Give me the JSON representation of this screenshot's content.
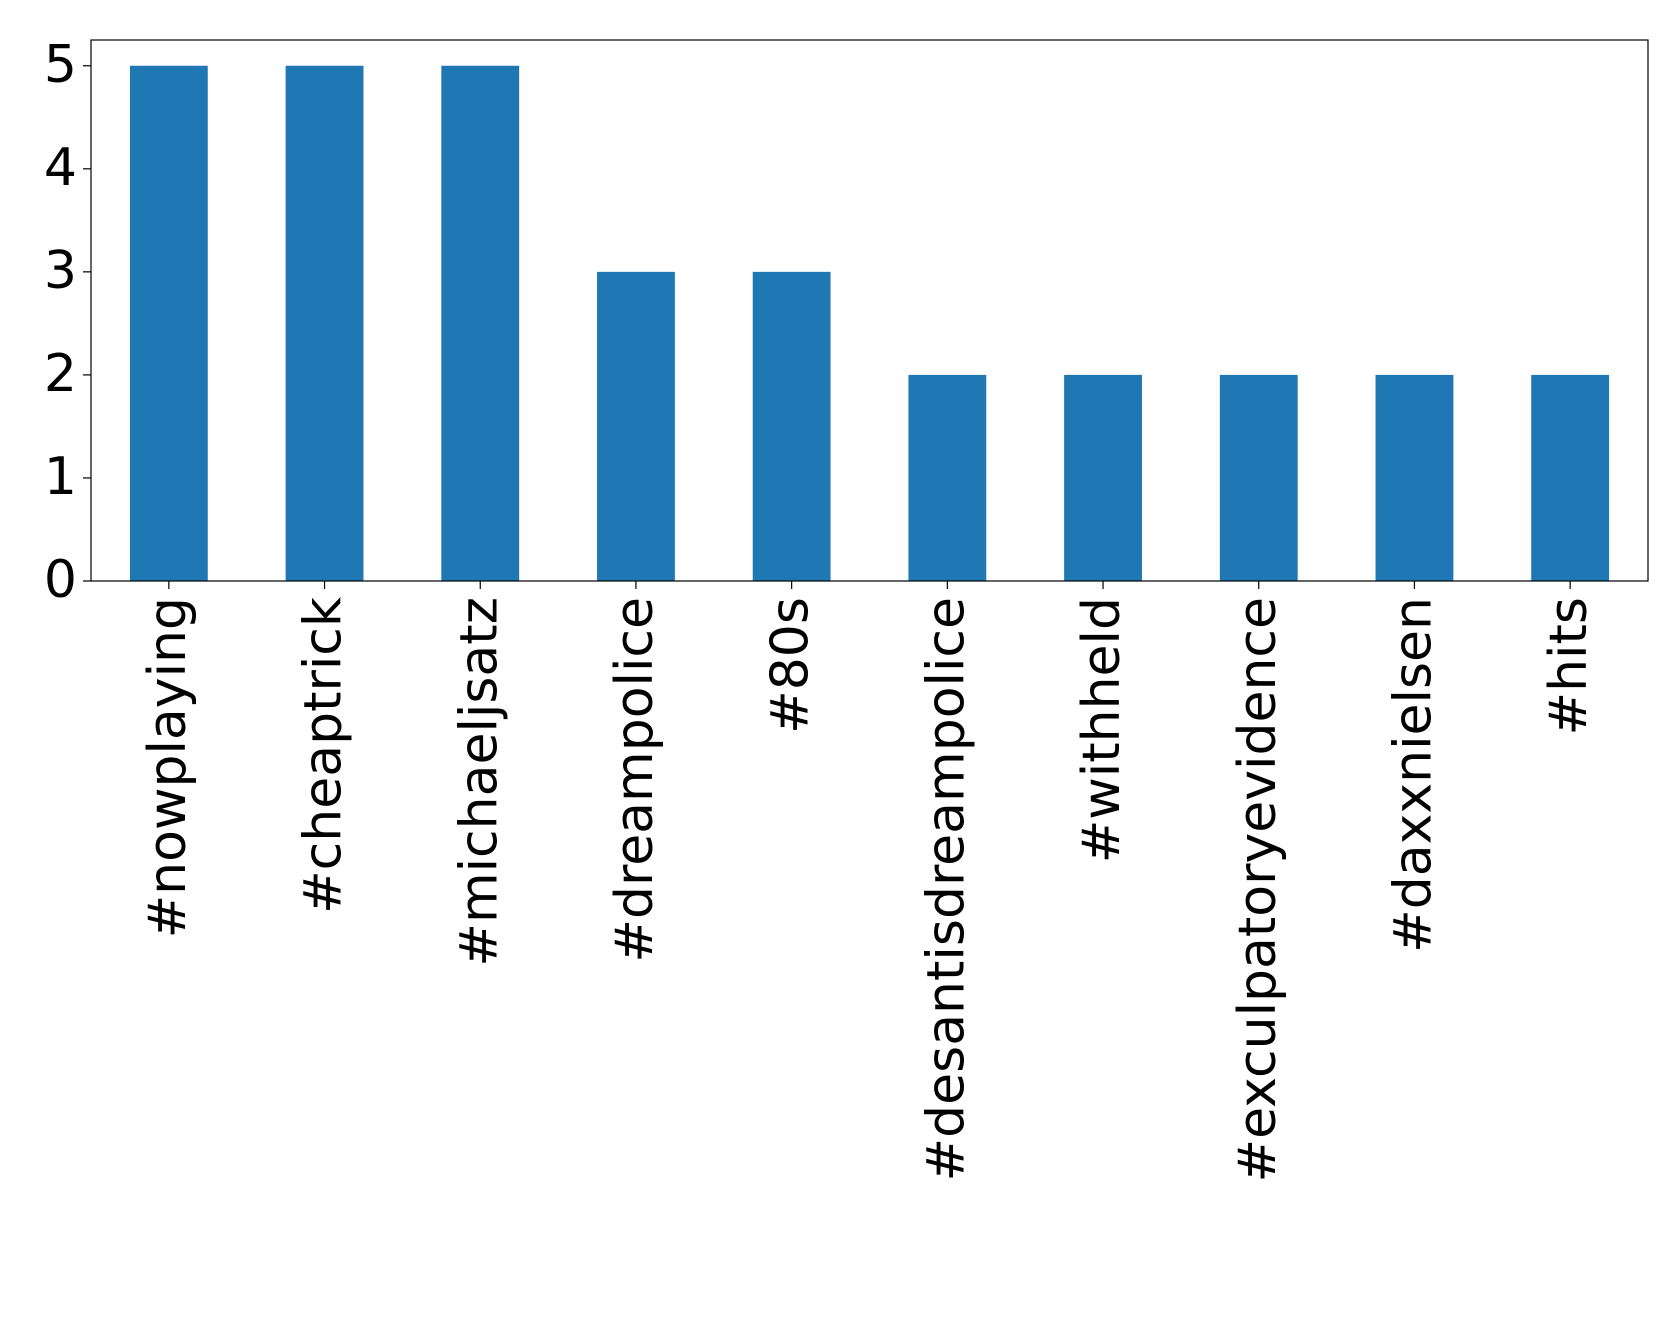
{
  "chart_data": {
    "type": "bar",
    "categories": [
      "#nowplaying",
      "#cheaptrick",
      "#michaeljsatz",
      "#dreampolice",
      "#80s",
      "#desantisdreampolice",
      "#withheld",
      "#exculpatoryevidence",
      "#daxxnielsen",
      "#hits"
    ],
    "values": [
      5,
      5,
      5,
      3,
      3,
      2,
      2,
      2,
      2,
      2
    ],
    "color": "#1f77b4",
    "ylim": [
      0,
      5.25
    ],
    "yticks": [
      0,
      1,
      2,
      3,
      4,
      5
    ],
    "grid": false
  }
}
